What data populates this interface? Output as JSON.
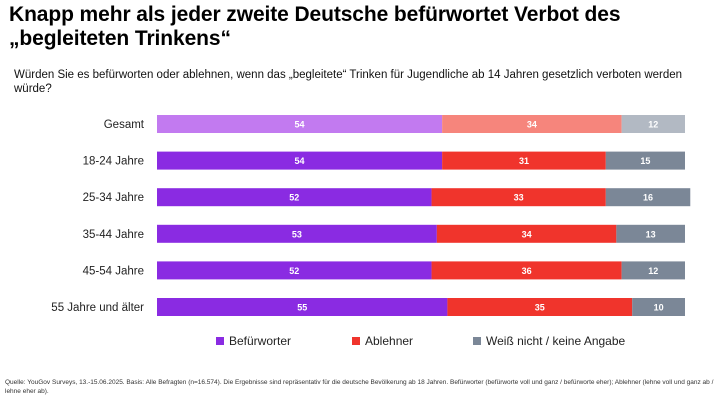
{
  "title": "Knapp mehr als jeder zweite Deutsche befürwortet Verbot des „begleiteten Trinkens“",
  "question": "Würden Sie es befürworten oder ablehnen, wenn das „begleitete“ Trinken für Jugendliche ab 14 Jahren gesetzlich verboten werden würde?",
  "source": "Quelle: YouGov Surveys, 13.-15.06.2025. Basis: Alle Befragten (n=16.574). Die Ergebnisse sind repräsentativ für die deutsche Bevölkerung ab 18 Jahren. Befürworter (befürworte voll und ganz / befürworte eher); Ablehner (lehne voll und ganz ab / lehne eher ab).",
  "chart_data": {
    "type": "bar",
    "orientation": "horizontal",
    "stacked": true,
    "categories": [
      "Gesamt",
      "18-24 Jahre",
      "25-34 Jahre",
      "35-44 Jahre",
      "45-54 Jahre",
      "55 Jahre und älter"
    ],
    "series": [
      {
        "name": "Befürworter",
        "values": [
          54,
          54,
          52,
          53,
          52,
          55
        ],
        "color": "#8a2be2",
        "color_gesamt": "#c27af0"
      },
      {
        "name": "Ablehner",
        "values": [
          34,
          31,
          33,
          34,
          36,
          35
        ],
        "color": "#f0342c",
        "color_gesamt": "#f6857c"
      },
      {
        "name": "Weiß nicht / keine Angabe",
        "values": [
          12,
          15,
          16,
          13,
          12,
          10
        ],
        "color": "#7b8797",
        "color_gesamt": "#b2b9c3"
      }
    ],
    "legend_position": "bottom",
    "grid": false
  }
}
